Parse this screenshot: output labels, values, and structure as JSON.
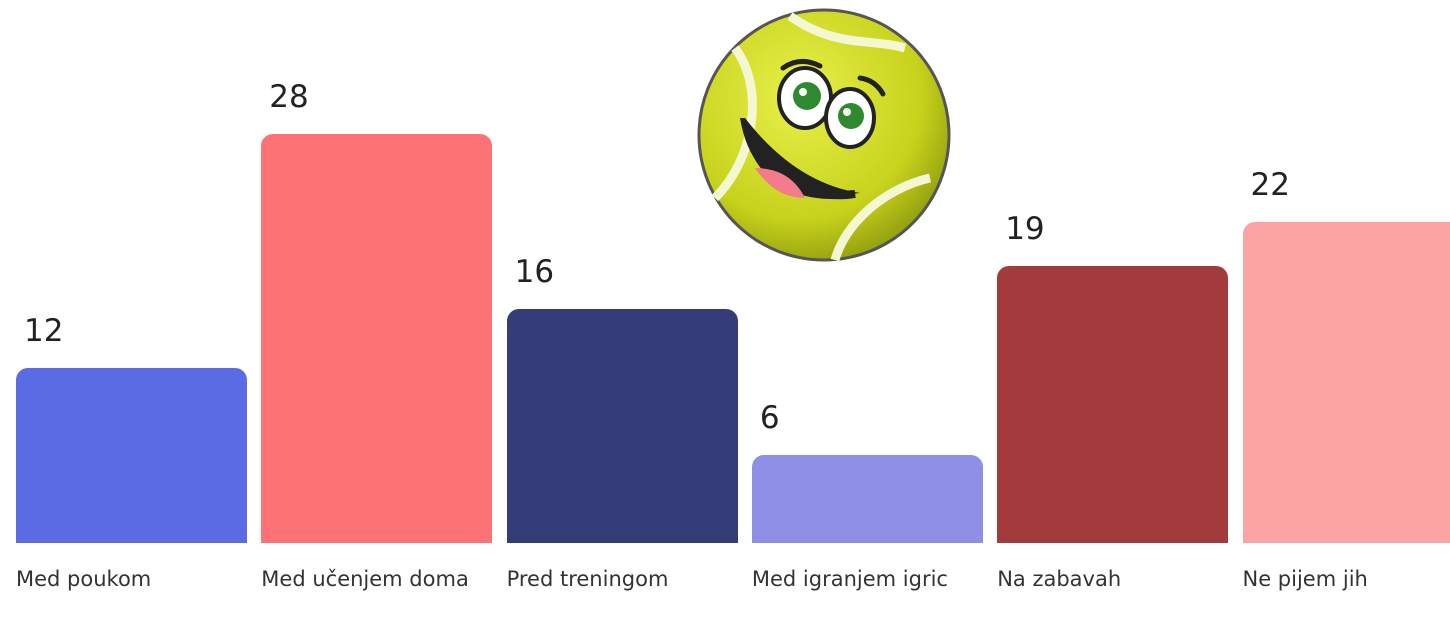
{
  "chart_data": {
    "type": "bar",
    "categories": [
      "Med poukom",
      "Med učenjem doma",
      "Pred treningom",
      "Med igranjem igric",
      "Na zabavah",
      "Ne pijem jih"
    ],
    "values": [
      12,
      28,
      16,
      6,
      19,
      22
    ],
    "colors": [
      "#5b6be3",
      "#fd7375",
      "#343d78",
      "#8f8fe6",
      "#a33a3b",
      "#fca3a4"
    ]
  }
}
